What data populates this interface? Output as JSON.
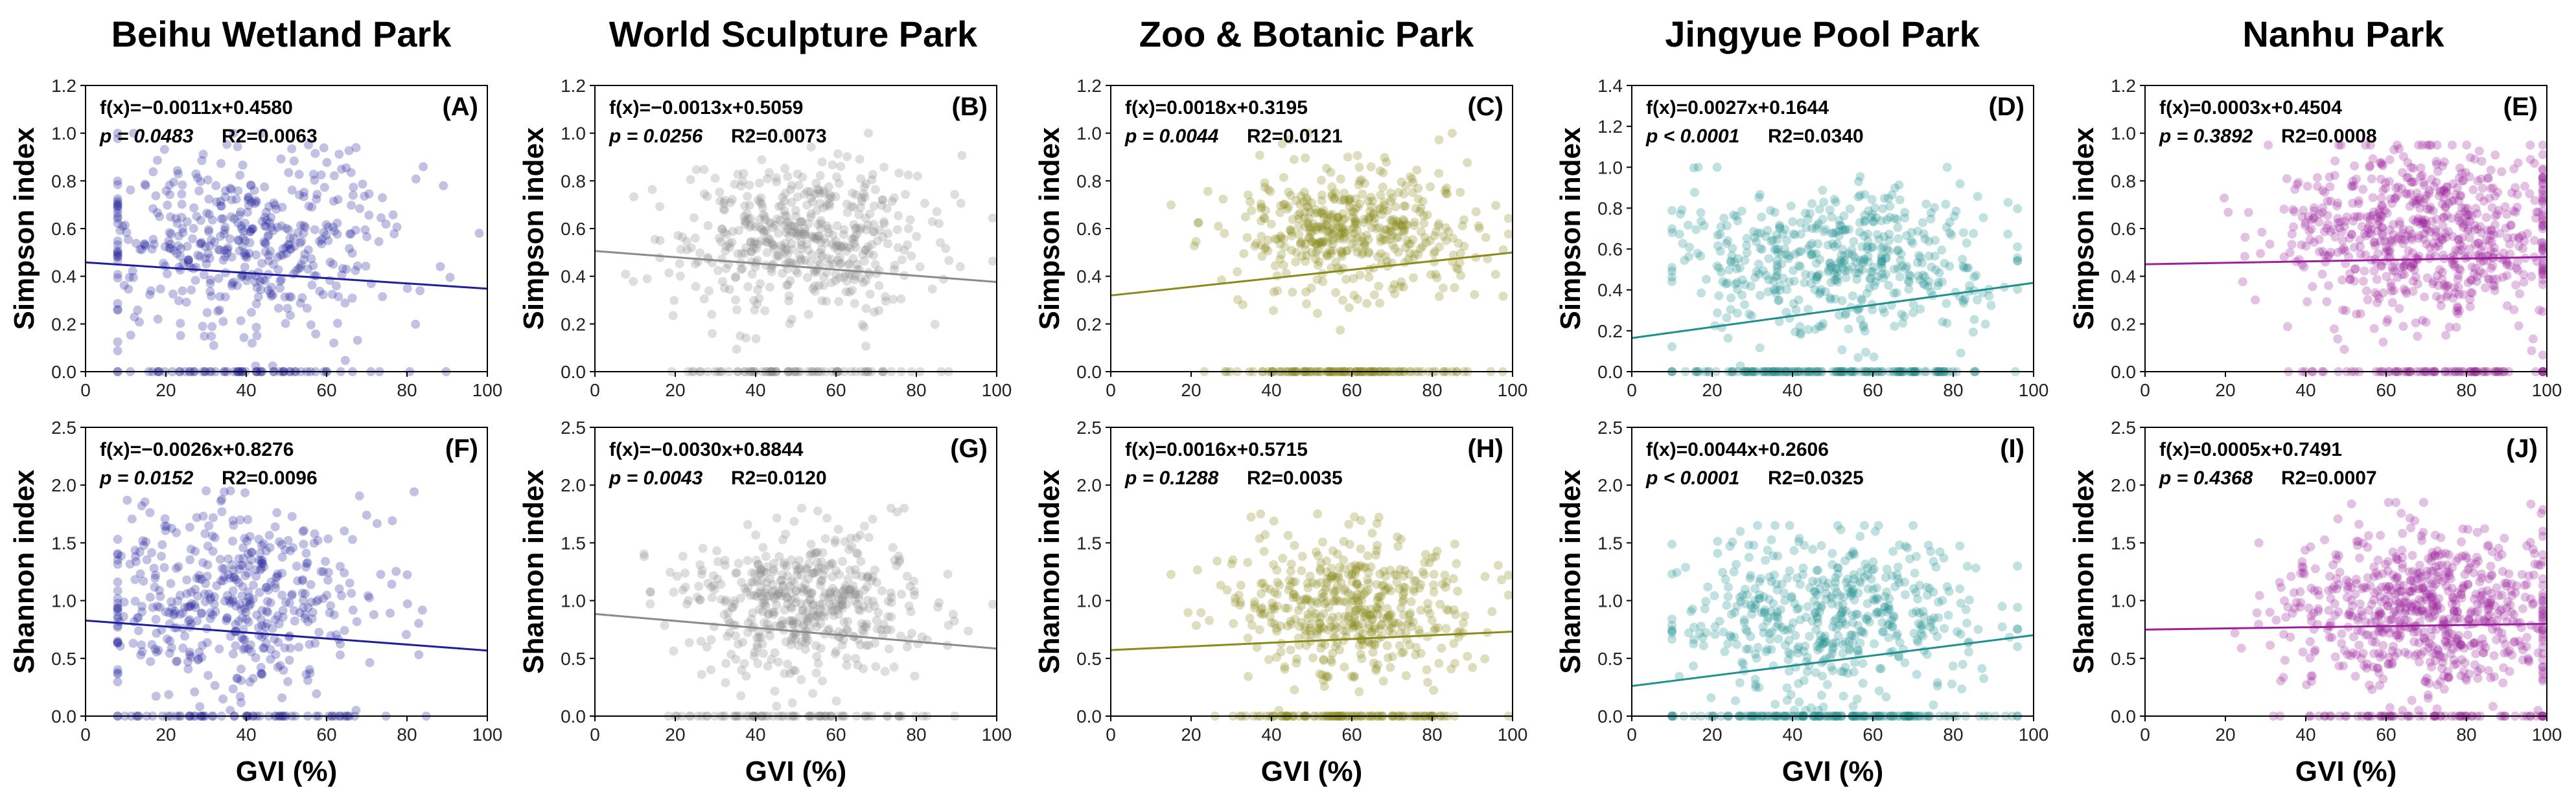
{
  "figure": {
    "titles": [
      "Beihu Wetland Park",
      "World Sculpture Park",
      "Zoo & Botanic Park",
      "Jingyue Pool Park",
      "Nanhu Park"
    ],
    "xlabel": "GVI (%)",
    "ylabels": {
      "top": "Simpson index",
      "bottom": "Shannon index"
    }
  },
  "colors": {
    "beihu": "#1f1f9c",
    "sculpture": "#8a8a8a",
    "zoo": "#8a8a1a",
    "jingyue": "#1f8f8f",
    "nanhu": "#9c1f9c"
  },
  "chart_data": [
    {
      "type": "scatter",
      "panel": "(A)",
      "park": "Beihu Wetland Park",
      "ylabel": "Simpson index",
      "xlabel": "",
      "xlim": [
        0,
        100
      ],
      "ylim": [
        0,
        1.2
      ],
      "xticks": [
        "0",
        "20",
        "40",
        "60",
        "80",
        "100"
      ],
      "yticks": [
        "0.0",
        "0.2",
        "0.4",
        "0.6",
        "0.8",
        "1.0",
        "1.2"
      ],
      "equation": "f(x)=−0.0011x+0.4580",
      "p_label": "p = 0.0483",
      "r2_label": "R2=0.0063",
      "fit": {
        "slope": -0.0011,
        "intercept": 0.458
      },
      "color": "#1f1f9c",
      "points": {
        "n": 520,
        "x_mean": 38,
        "x_sd": 19,
        "x_min": 8,
        "x_max": 98,
        "y_mean": 0.55,
        "y_sd": 0.19,
        "y_max": 1.0,
        "zero_frac": 0.12
      }
    },
    {
      "type": "scatter",
      "panel": "(B)",
      "park": "World Sculpture Park",
      "ylabel": "Simpson index",
      "xlabel": "",
      "xlim": [
        0,
        100
      ],
      "ylim": [
        0,
        1.2
      ],
      "xticks": [
        "0",
        "20",
        "40",
        "60",
        "80",
        "100"
      ],
      "yticks": [
        "0.0",
        "0.2",
        "0.4",
        "0.6",
        "0.8",
        "1.0",
        "1.2"
      ],
      "equation": "f(x)=−0.0013x+0.5059",
      "p_label": "p = 0.0256",
      "r2_label": "R2=0.0073",
      "fit": {
        "slope": -0.0013,
        "intercept": 0.5059
      },
      "color": "#8a8a8a",
      "points": {
        "n": 560,
        "x_mean": 52,
        "x_sd": 15,
        "x_min": 5,
        "x_max": 99,
        "y_mean": 0.56,
        "y_sd": 0.16,
        "y_max": 1.0,
        "zero_frac": 0.14
      }
    },
    {
      "type": "scatter",
      "panel": "(C)",
      "park": "Zoo & Botanic Park",
      "ylabel": "Simpson index",
      "xlabel": "",
      "xlim": [
        0,
        100
      ],
      "ylim": [
        0,
        1.2
      ],
      "xticks": [
        "0",
        "20",
        "40",
        "60",
        "80",
        "100"
      ],
      "yticks": [
        "0.0",
        "0.2",
        "0.4",
        "0.6",
        "0.8",
        "1.0",
        "1.2"
      ],
      "equation": "f(x)=0.0018x+0.3195",
      "p_label": "p = 0.0044",
      "r2_label": "R2=0.0121",
      "fit": {
        "slope": 0.0018,
        "intercept": 0.3195
      },
      "color": "#8a8a1a",
      "points": {
        "n": 580,
        "x_mean": 60,
        "x_sd": 15,
        "x_min": 15,
        "x_max": 99,
        "y_mean": 0.58,
        "y_sd": 0.15,
        "y_max": 1.0,
        "zero_frac": 0.18
      }
    },
    {
      "type": "scatter",
      "panel": "(D)",
      "park": "Jingyue Pool Park",
      "ylabel": "Simpson index",
      "xlabel": "",
      "xlim": [
        0,
        100
      ],
      "ylim": [
        0,
        1.4
      ],
      "xticks": [
        "0",
        "20",
        "40",
        "60",
        "80",
        "100"
      ],
      "yticks": [
        "0.0",
        "0.2",
        "0.4",
        "0.6",
        "0.8",
        "1.0",
        "1.2",
        "1.4"
      ],
      "equation": "f(x)=0.0027x+0.1644",
      "p_label": "p < 0.0001",
      "r2_label": "R2=0.0340",
      "fit": {
        "slope": 0.0027,
        "intercept": 0.1644
      },
      "color": "#1f8f8f",
      "points": {
        "n": 640,
        "x_mean": 50,
        "x_sd": 19,
        "x_min": 10,
        "x_max": 96,
        "y_mean": 0.55,
        "y_sd": 0.18,
        "y_max": 1.0,
        "zero_frac": 0.22
      }
    },
    {
      "type": "scatter",
      "panel": "(E)",
      "park": "Nanhu Park",
      "ylabel": "Simpson index",
      "xlabel": "",
      "xlim": [
        0,
        100
      ],
      "ylim": [
        0,
        1.2
      ],
      "xticks": [
        "0",
        "20",
        "40",
        "60",
        "80",
        "100"
      ],
      "yticks": [
        "0.0",
        "0.2",
        "0.4",
        "0.6",
        "0.8",
        "1.0",
        "1.2"
      ],
      "equation": "f(x)=0.0003x+0.4504",
      "p_label": "p = 0.3892",
      "r2_label": "R2=0.0008",
      "fit": {
        "slope": 0.0003,
        "intercept": 0.4504
      },
      "color": "#9c1f9c",
      "points": {
        "n": 760,
        "x_mean": 70,
        "x_sd": 18,
        "x_min": 15,
        "x_max": 99,
        "y_mean": 0.57,
        "y_sd": 0.18,
        "y_max": 0.95,
        "zero_frac": 0.1
      }
    },
    {
      "type": "scatter",
      "panel": "(F)",
      "park": "Beihu Wetland Park",
      "ylabel": "Shannon index",
      "xlabel": "GVI (%)",
      "xlim": [
        0,
        100
      ],
      "ylim": [
        0,
        2.5
      ],
      "xticks": [
        "0",
        "20",
        "40",
        "60",
        "80",
        "100"
      ],
      "yticks": [
        "0.0",
        "0.5",
        "1.0",
        "1.5",
        "2.0",
        "2.5"
      ],
      "equation": "f(x)=−0.0026x+0.8276",
      "p_label": "p = 0.0152",
      "r2_label": "R2=0.0096",
      "fit": {
        "slope": -0.0026,
        "intercept": 0.8276
      },
      "color": "#1f1f9c",
      "points": {
        "n": 520,
        "x_mean": 38,
        "x_sd": 19,
        "x_min": 8,
        "x_max": 98,
        "y_mean": 1.0,
        "y_sd": 0.38,
        "y_max": 1.95,
        "zero_frac": 0.12
      }
    },
    {
      "type": "scatter",
      "panel": "(G)",
      "park": "World Sculpture Park",
      "ylabel": "Shannon index",
      "xlabel": "GVI (%)",
      "xlim": [
        0,
        100
      ],
      "ylim": [
        0,
        2.5
      ],
      "xticks": [
        "0",
        "20",
        "40",
        "60",
        "80",
        "100"
      ],
      "yticks": [
        "0.0",
        "0.5",
        "1.0",
        "1.5",
        "2.0",
        "2.5"
      ],
      "equation": "f(x)=−0.0030x+0.8844",
      "p_label": "p = 0.0043",
      "r2_label": "R2=0.0120",
      "fit": {
        "slope": -0.003,
        "intercept": 0.8844
      },
      "color": "#8a8a8a",
      "points": {
        "n": 560,
        "x_mean": 52,
        "x_sd": 15,
        "x_min": 5,
        "x_max": 99,
        "y_mean": 0.98,
        "y_sd": 0.32,
        "y_max": 1.8,
        "zero_frac": 0.14
      }
    },
    {
      "type": "scatter",
      "panel": "(H)",
      "park": "Zoo & Botanic Park",
      "ylabel": "Shannon index",
      "xlabel": "GVI (%)",
      "xlim": [
        0,
        100
      ],
      "ylim": [
        0,
        2.5
      ],
      "xticks": [
        "0",
        "20",
        "40",
        "60",
        "80",
        "100"
      ],
      "yticks": [
        "0.0",
        "0.5",
        "1.0",
        "1.5",
        "2.0",
        "2.5"
      ],
      "equation": "f(x)=0.0016x+0.5715",
      "p_label": "p = 0.1288",
      "r2_label": "R2=0.0035",
      "fit": {
        "slope": 0.0016,
        "intercept": 0.5715
      },
      "color": "#8a8a1a",
      "points": {
        "n": 580,
        "x_mean": 60,
        "x_sd": 15,
        "x_min": 15,
        "x_max": 99,
        "y_mean": 0.95,
        "y_sd": 0.3,
        "y_max": 1.75,
        "zero_frac": 0.18
      }
    },
    {
      "type": "scatter",
      "panel": "(I)",
      "park": "Jingyue Pool Park",
      "ylabel": "Shannon index",
      "xlabel": "GVI (%)",
      "xlim": [
        0,
        100
      ],
      "ylim": [
        0,
        2.5
      ],
      "xticks": [
        "0",
        "20",
        "40",
        "60",
        "80",
        "100"
      ],
      "yticks": [
        "0.0",
        "0.5",
        "1.0",
        "1.5",
        "2.0",
        "2.5"
      ],
      "equation": "f(x)=0.0044x+0.2606",
      "p_label": "p < 0.0001",
      "r2_label": "R2=0.0325",
      "fit": {
        "slope": 0.0044,
        "intercept": 0.2606
      },
      "color": "#1f8f8f",
      "points": {
        "n": 640,
        "x_mean": 50,
        "x_sd": 19,
        "x_min": 10,
        "x_max": 96,
        "y_mean": 0.85,
        "y_sd": 0.33,
        "y_max": 1.65,
        "zero_frac": 0.22
      }
    },
    {
      "type": "scatter",
      "panel": "(J)",
      "park": "Nanhu Park",
      "ylabel": "Shannon index",
      "xlabel": "GVI (%)",
      "xlim": [
        0,
        100
      ],
      "ylim": [
        0,
        2.5
      ],
      "xticks": [
        "0",
        "20",
        "40",
        "60",
        "80",
        "100"
      ],
      "yticks": [
        "0.0",
        "0.5",
        "1.0",
        "1.5",
        "2.0",
        "2.5"
      ],
      "equation": "f(x)=0.0005x+0.7491",
      "p_label": "p = 0.4368",
      "r2_label": "R2=0.0007",
      "fit": {
        "slope": 0.0005,
        "intercept": 0.7491
      },
      "color": "#9c1f9c",
      "points": {
        "n": 760,
        "x_mean": 70,
        "x_sd": 18,
        "x_min": 15,
        "x_max": 99,
        "y_mean": 0.92,
        "y_sd": 0.35,
        "y_max": 1.85,
        "zero_frac": 0.1
      }
    }
  ]
}
